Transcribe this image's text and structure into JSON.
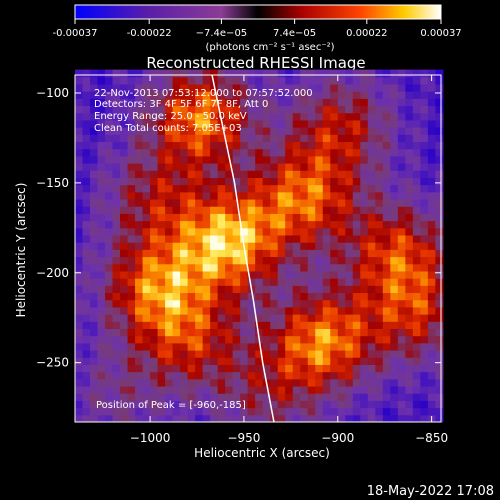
{
  "colorbar": {
    "ticks": [
      "-0.00037",
      "-0.00022",
      "−7.4e−05",
      "7.4e−05",
      "0.00022",
      "0.00037"
    ],
    "tick_values": [
      -0.00037,
      -0.00022,
      -7.4e-05,
      7.4e-05,
      0.00022,
      0.00037
    ],
    "range": [
      -0.00037,
      0.00037
    ],
    "units": "(photons cm⁻² s⁻¹ asec⁻²)"
  },
  "info": {
    "time": "22-Nov-2013 07:53:12.000 to 07:57:52.000",
    "detectors": "Detectors: 3F 4F 5F 6F 7F 8F, Att 0",
    "energy": "Energy Range: 25.0 - 50.0 keV",
    "clean": "Clean     Total counts: 7.05E+03",
    "peak": "Position of Peak = [-960,-185]"
  },
  "footer": {
    "date": "18-May-2022 17:08"
  },
  "chart_data": {
    "type": "heatmap",
    "title": "Reconstructed RHESSI Image",
    "xlabel": "Heliocentric X (arcsec)",
    "ylabel": "Heliocentric Y (arcsec)",
    "xlim": [
      -1040,
      -845
    ],
    "ylim": [
      -283,
      -90
    ],
    "x_ticks": [
      -1000,
      -950,
      -900,
      -850
    ],
    "x_tick_labels": [
      "−1000",
      "−950",
      "−900",
      "−850"
    ],
    "y_ticks": [
      -100,
      -150,
      -200,
      -250
    ],
    "y_tick_labels": [
      "−100",
      "−150",
      "−200",
      "−250"
    ],
    "peak": [
      -960,
      -185
    ],
    "limb_curve": [
      [
        -967,
        -90
      ],
      [
        -955,
        -150
      ],
      [
        -950,
        -185
      ],
      [
        -945,
        -215
      ],
      [
        -940,
        -250
      ],
      [
        -934,
        -283
      ]
    ],
    "grid": false,
    "colormap": "blue-purple-red-yellow-white"
  }
}
